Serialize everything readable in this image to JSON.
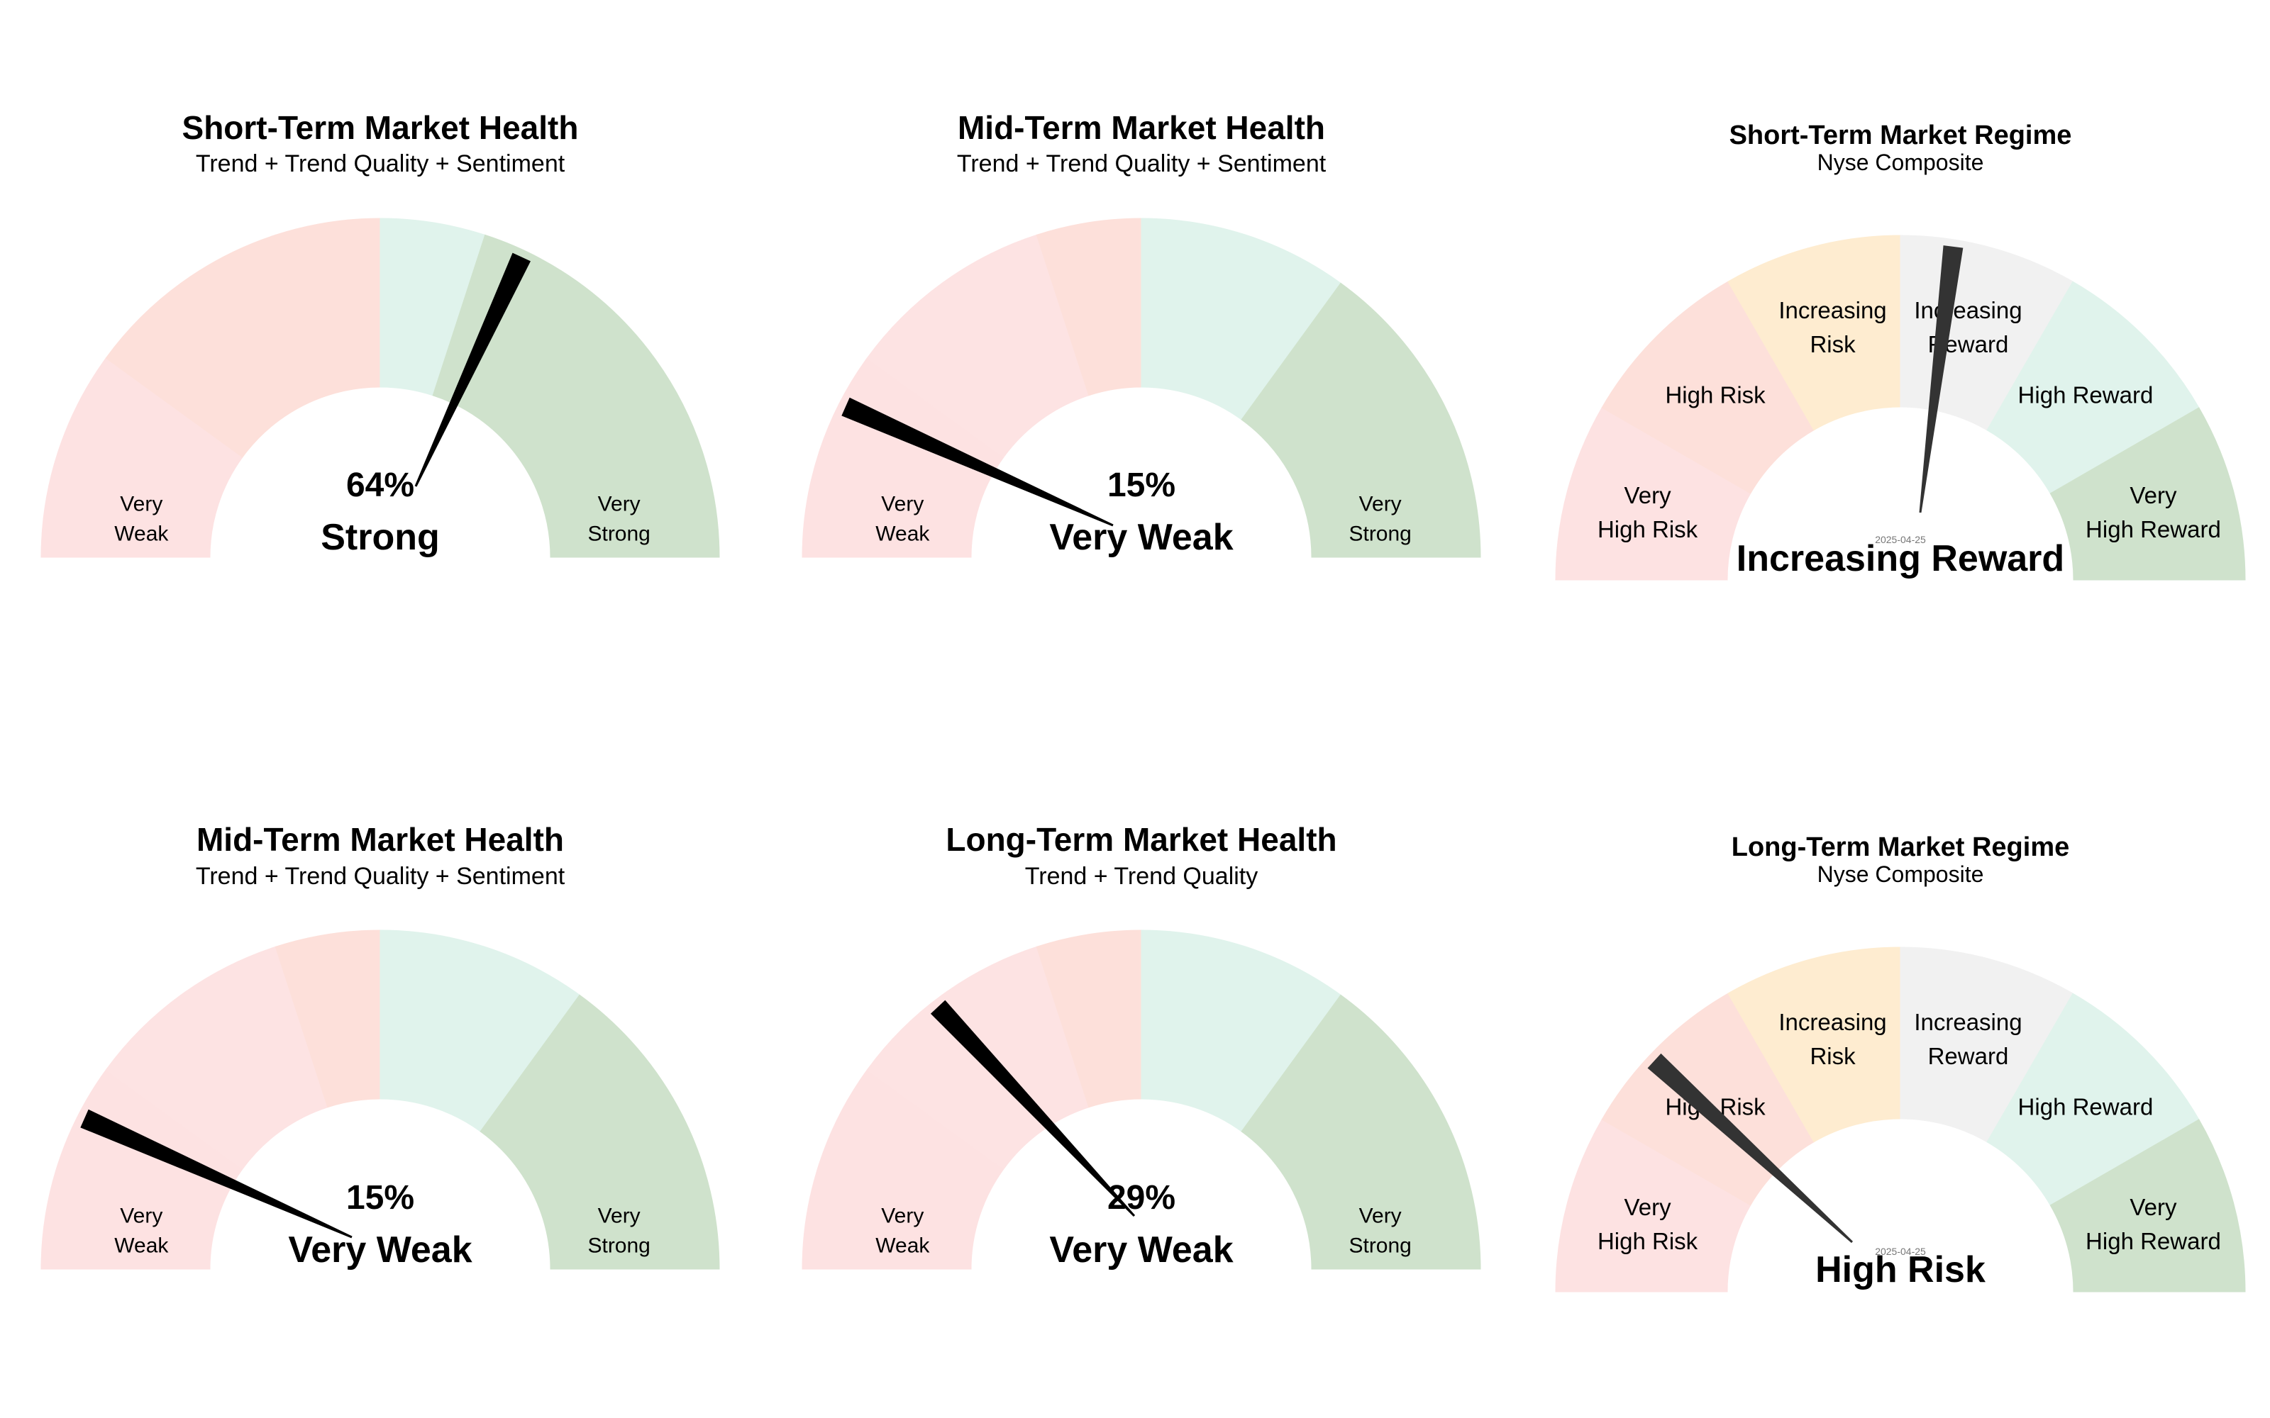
{
  "chart_data": [
    {
      "type": "gauge",
      "title": "Short-Term Market Health",
      "subtitle": "Trend + Trend Quality + Sentiment",
      "range": [
        0,
        100
      ],
      "value": 64,
      "value_label": "64%",
      "status": "Strong",
      "bands": [
        {
          "from": 0,
          "to": 20,
          "color": "#fde2e2"
        },
        {
          "from": 20,
          "to": 40,
          "color": "#fde0da"
        },
        {
          "from": 40,
          "to": 50,
          "color": "#fde0da"
        },
        {
          "from": 50,
          "to": 60,
          "color": "#e0f3ec"
        },
        {
          "from": 60,
          "to": 100,
          "color": "#cfe2cc"
        }
      ],
      "labels": [
        {
          "lines": [
            "Very",
            "Weak"
          ],
          "at": 10
        },
        {
          "lines": [
            "Very",
            "Strong"
          ],
          "at": 90
        }
      ],
      "needle_color": "#000000"
    },
    {
      "type": "gauge",
      "title": "Mid-Term Market Health",
      "subtitle": "Trend + Trend Quality + Sentiment",
      "range": [
        0,
        100
      ],
      "value": 15,
      "value_label": "15%",
      "status": "Very Weak",
      "bands": [
        {
          "from": 0,
          "to": 20,
          "color": "#fde2e2"
        },
        {
          "from": 20,
          "to": 40,
          "color": "#fde3e3"
        },
        {
          "from": 40,
          "to": 50,
          "color": "#fde0da"
        },
        {
          "from": 50,
          "to": 70,
          "color": "#e0f3ec"
        },
        {
          "from": 70,
          "to": 100,
          "color": "#cfe2cc"
        }
      ],
      "labels": [
        {
          "lines": [
            "Very",
            "Weak"
          ],
          "at": 10
        },
        {
          "lines": [
            "Very",
            "Strong"
          ],
          "at": 90
        }
      ],
      "needle_color": "#000000"
    },
    {
      "type": "gauge",
      "title": "Short-Term Market Regime",
      "subtitle": "Nyse Composite",
      "range": [
        0,
        100
      ],
      "value": 55,
      "status": "Increasing Reward",
      "date": "2025-04-25",
      "bands": [
        {
          "from": 0,
          "to": 16.67,
          "color": "#fde2e2"
        },
        {
          "from": 16.67,
          "to": 33.33,
          "color": "#fde0da"
        },
        {
          "from": 33.33,
          "to": 50,
          "color": "#feecd0"
        },
        {
          "from": 50,
          "to": 66.67,
          "color": "#f1f1f1"
        },
        {
          "from": 66.67,
          "to": 83.33,
          "color": "#e0f3ec"
        },
        {
          "from": 83.33,
          "to": 100,
          "color": "#cfe2cc"
        }
      ],
      "labels": [
        {
          "lines": [
            "Very",
            "High Risk"
          ],
          "at": 8.33
        },
        {
          "lines": [
            "High Risk"
          ],
          "at": 25
        },
        {
          "lines": [
            "Increasing",
            "Risk"
          ],
          "at": 41.67
        },
        {
          "lines": [
            "Increasing",
            "Reward"
          ],
          "at": 58.33
        },
        {
          "lines": [
            "High Reward"
          ],
          "at": 75
        },
        {
          "lines": [
            "Very",
            "High Reward"
          ],
          "at": 91.67
        }
      ],
      "needle_color": "#333333"
    },
    {
      "type": "gauge",
      "title": "Mid-Term Market Health",
      "subtitle": "Trend + Trend Quality + Sentiment",
      "range": [
        0,
        100
      ],
      "value": 15,
      "value_label": "15%",
      "status": "Very Weak",
      "bands": [
        {
          "from": 0,
          "to": 20,
          "color": "#fde2e2"
        },
        {
          "from": 20,
          "to": 40,
          "color": "#fde3e3"
        },
        {
          "from": 40,
          "to": 50,
          "color": "#fde0da"
        },
        {
          "from": 50,
          "to": 70,
          "color": "#e0f3ec"
        },
        {
          "from": 70,
          "to": 100,
          "color": "#cfe2cc"
        }
      ],
      "labels": [
        {
          "lines": [
            "Very",
            "Weak"
          ],
          "at": 10
        },
        {
          "lines": [
            "Very",
            "Strong"
          ],
          "at": 90
        }
      ],
      "needle_color": "#000000"
    },
    {
      "type": "gauge",
      "title": "Long-Term Market Health",
      "subtitle": "Trend + Trend Quality",
      "range": [
        0,
        100
      ],
      "value": 29,
      "value_label": "29%",
      "status": "Very Weak",
      "bands": [
        {
          "from": 0,
          "to": 20,
          "color": "#fde2e2"
        },
        {
          "from": 20,
          "to": 40,
          "color": "#fde3e3"
        },
        {
          "from": 40,
          "to": 50,
          "color": "#fde0da"
        },
        {
          "from": 50,
          "to": 70,
          "color": "#e0f3ec"
        },
        {
          "from": 70,
          "to": 100,
          "color": "#cfe2cc"
        }
      ],
      "labels": [
        {
          "lines": [
            "Very",
            "Weak"
          ],
          "at": 10
        },
        {
          "lines": [
            "Very",
            "Strong"
          ],
          "at": 90
        }
      ],
      "needle_color": "#000000"
    },
    {
      "type": "gauge",
      "title": "Long-Term Market Regime",
      "subtitle": "Nyse Composite",
      "range": [
        0,
        100
      ],
      "value": 24,
      "status": "High Risk",
      "date": "2025-04-25",
      "bands": [
        {
          "from": 0,
          "to": 16.67,
          "color": "#fde2e2"
        },
        {
          "from": 16.67,
          "to": 33.33,
          "color": "#fde0da"
        },
        {
          "from": 33.33,
          "to": 50,
          "color": "#feecd0"
        },
        {
          "from": 50,
          "to": 66.67,
          "color": "#f1f1f1"
        },
        {
          "from": 66.67,
          "to": 83.33,
          "color": "#e0f3ec"
        },
        {
          "from": 83.33,
          "to": 100,
          "color": "#cfe2cc"
        }
      ],
      "labels": [
        {
          "lines": [
            "Very",
            "High Risk"
          ],
          "at": 8.33
        },
        {
          "lines": [
            "High Risk"
          ],
          "at": 25
        },
        {
          "lines": [
            "Increasing",
            "Risk"
          ],
          "at": 41.67
        },
        {
          "lines": [
            "Increasing",
            "Reward"
          ],
          "at": 58.33
        },
        {
          "lines": [
            "High Reward"
          ],
          "at": 75
        },
        {
          "lines": [
            "Very",
            "High Reward"
          ],
          "at": 91.67
        }
      ],
      "needle_color": "#333333"
    }
  ]
}
